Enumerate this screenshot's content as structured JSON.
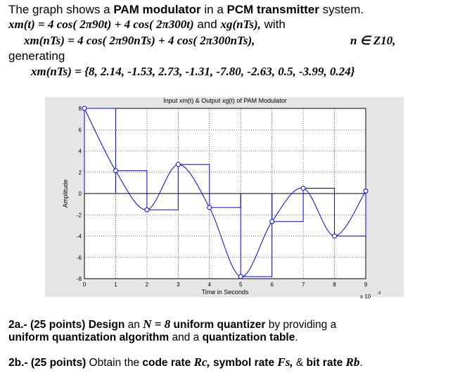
{
  "header": {
    "line1_a": "The graph shows a ",
    "line1_b": "PAM modulator",
    "line1_c": " in a ",
    "line1_d": "PCM transmitter",
    "line1_e": " system.",
    "line2_math": "xm(t) = 4 cos( 2π90t) + 4 cos( 2π300t)",
    "line2_and": " and ",
    "line2_math2": "xg(nTs),",
    "line2_with": " with",
    "line3_math": "xm(nTs) = 4 cos( 2π90nTs) + 4 cos( 2π300nTs),",
    "line3_n": "n ∈ Z10,",
    "line4": "generating",
    "line5_math": "xm(nTs) = {8, 2.14, -1.53, 2.73, -1.31, -7.80, -2.63, 0.5, -3.99, 0.24}"
  },
  "chart_data": {
    "type": "line",
    "title": "Input xm(t) & Output xg(t) of PAM Modulator",
    "xlabel": "Time in Seconds",
    "ylabel": "Amplitude",
    "x_multiplier": "x 10",
    "x_multiplier_exp": "-3",
    "xlim": [
      0,
      9
    ],
    "ylim": [
      -8,
      8
    ],
    "xticks": [
      "0",
      "1",
      "2",
      "3",
      "4",
      "5",
      "6",
      "7",
      "8",
      "9"
    ],
    "yticks": [
      "8",
      "6",
      "4",
      "2",
      "0",
      "-2",
      "-4",
      "-6",
      "-8"
    ],
    "grid": true,
    "samples_x": [
      0,
      1,
      2,
      3,
      4,
      5,
      6,
      7,
      8,
      9
    ],
    "samples_y": [
      8,
      2.14,
      -1.53,
      2.73,
      -1.31,
      -7.8,
      -2.63,
      0.5,
      -3.99,
      0.24
    ],
    "colors": {
      "input": "#0000ff",
      "held": "#0000ff",
      "zero": "#000000"
    }
  },
  "questions": {
    "q1_a": "2a.- (25 points) ",
    "q1_b": "Design",
    "q1_c": " an ",
    "q1_d": "N = 8",
    "q1_e": " uniform quantizer",
    "q1_f": " by providing a",
    "q1_g": "uniform quantization algorithm",
    "q1_h": " and a ",
    "q1_i": "quantization table",
    "q1_j": ".",
    "q2_a": "2b.- (25 points) ",
    "q2_b": "Obtain the ",
    "q2_c": "code rate ",
    "q2_d": "Rc,",
    "q2_e": " symbol rate ",
    "q2_f": "Fs,",
    "q2_g": " & ",
    "q2_h": "bit rate ",
    "q2_i": "Rb",
    "q2_j": "."
  }
}
